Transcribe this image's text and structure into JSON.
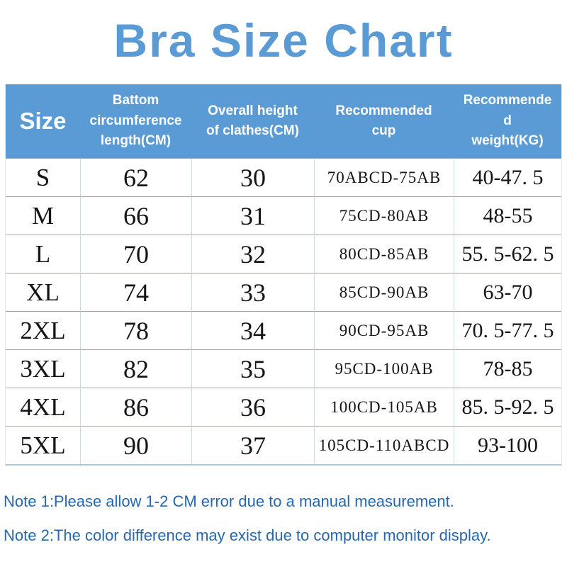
{
  "title": "Bra Size Chart",
  "table": {
    "headers": [
      {
        "name": "column-header-size",
        "label": "Size",
        "label_lines": [
          "Size"
        ]
      },
      {
        "name": "column-header-bottom-circumference",
        "label": "Battom circumference length(CM)",
        "label_lines": [
          "Battom",
          "circumference",
          "length(CM)"
        ]
      },
      {
        "name": "column-header-overall-height",
        "label": "Overall height of clathes(CM)",
        "label_lines": [
          "Overall height",
          "of clathes(CM)"
        ]
      },
      {
        "name": "column-header-recommended-cup",
        "label": "Recommended cup",
        "label_lines": [
          "Recommended",
          "cup"
        ]
      },
      {
        "name": "column-header-recommended-weight",
        "label": "Recommended weight(KG)",
        "label_lines": [
          "Recommende",
          "d",
          "weight(KG)"
        ]
      }
    ],
    "rows": [
      {
        "size": "S",
        "bottom_circumference_cm": "62",
        "overall_height_cm": "30",
        "recommended_cup": "70ABCD-75AB",
        "recommended_weight_kg": "40-47. 5"
      },
      {
        "size": "M",
        "bottom_circumference_cm": "66",
        "overall_height_cm": "31",
        "recommended_cup": "75CD-80AB",
        "recommended_weight_kg": "48-55"
      },
      {
        "size": "L",
        "bottom_circumference_cm": "70",
        "overall_height_cm": "32",
        "recommended_cup": "80CD-85AB",
        "recommended_weight_kg": "55. 5-62. 5"
      },
      {
        "size": "XL",
        "bottom_circumference_cm": "74",
        "overall_height_cm": "33",
        "recommended_cup": "85CD-90AB",
        "recommended_weight_kg": "63-70"
      },
      {
        "size": "2XL",
        "bottom_circumference_cm": "78",
        "overall_height_cm": "34",
        "recommended_cup": "90CD-95AB",
        "recommended_weight_kg": "70. 5-77. 5"
      },
      {
        "size": "3XL",
        "bottom_circumference_cm": "82",
        "overall_height_cm": "35",
        "recommended_cup": "95CD-100AB",
        "recommended_weight_kg": "78-85"
      },
      {
        "size": "4XL",
        "bottom_circumference_cm": "86",
        "overall_height_cm": "36",
        "recommended_cup": "100CD-105AB",
        "recommended_weight_kg": "85. 5-92. 5"
      },
      {
        "size": "5XL",
        "bottom_circumference_cm": "90",
        "overall_height_cm": "37",
        "recommended_cup": "105CD-110ABCD",
        "recommended_weight_kg": "93-100"
      }
    ]
  },
  "notes": [
    "Note 1:Please allow 1-2 CM error due to a manual measurement.",
    "Note 2:The color difference may exist due to computer monitor display."
  ],
  "colors": {
    "title_blue": "#5b9bd5",
    "header_bg": "#5b9bd5",
    "header_text": "#ffffff",
    "note_blue": "#2767ae",
    "row_line": "#82abd6",
    "column_line": "#c9d9ec",
    "body_text": "#151515"
  },
  "chart_data": {
    "type": "table",
    "title": "Bra Size Chart",
    "columns": [
      "Size",
      "Battom circumference length(CM)",
      "Overall height of clathes(CM)",
      "Recommended cup",
      "Recommended weight(KG)"
    ],
    "rows": [
      [
        "S",
        62,
        30,
        "70ABCD-75AB",
        "40-47.5"
      ],
      [
        "M",
        66,
        31,
        "75CD-80AB",
        "48-55"
      ],
      [
        "L",
        70,
        32,
        "80CD-85AB",
        "55.5-62.5"
      ],
      [
        "XL",
        74,
        33,
        "85CD-90AB",
        "63-70"
      ],
      [
        "2XL",
        78,
        34,
        "90CD-95AB",
        "70.5-77.5"
      ],
      [
        "3XL",
        82,
        35,
        "95CD-100AB",
        "78-85"
      ],
      [
        "4XL",
        86,
        36,
        "100CD-105AB",
        "85.5-92.5"
      ],
      [
        "5XL",
        90,
        37,
        "105CD-110ABCD",
        "93-100"
      ]
    ]
  }
}
